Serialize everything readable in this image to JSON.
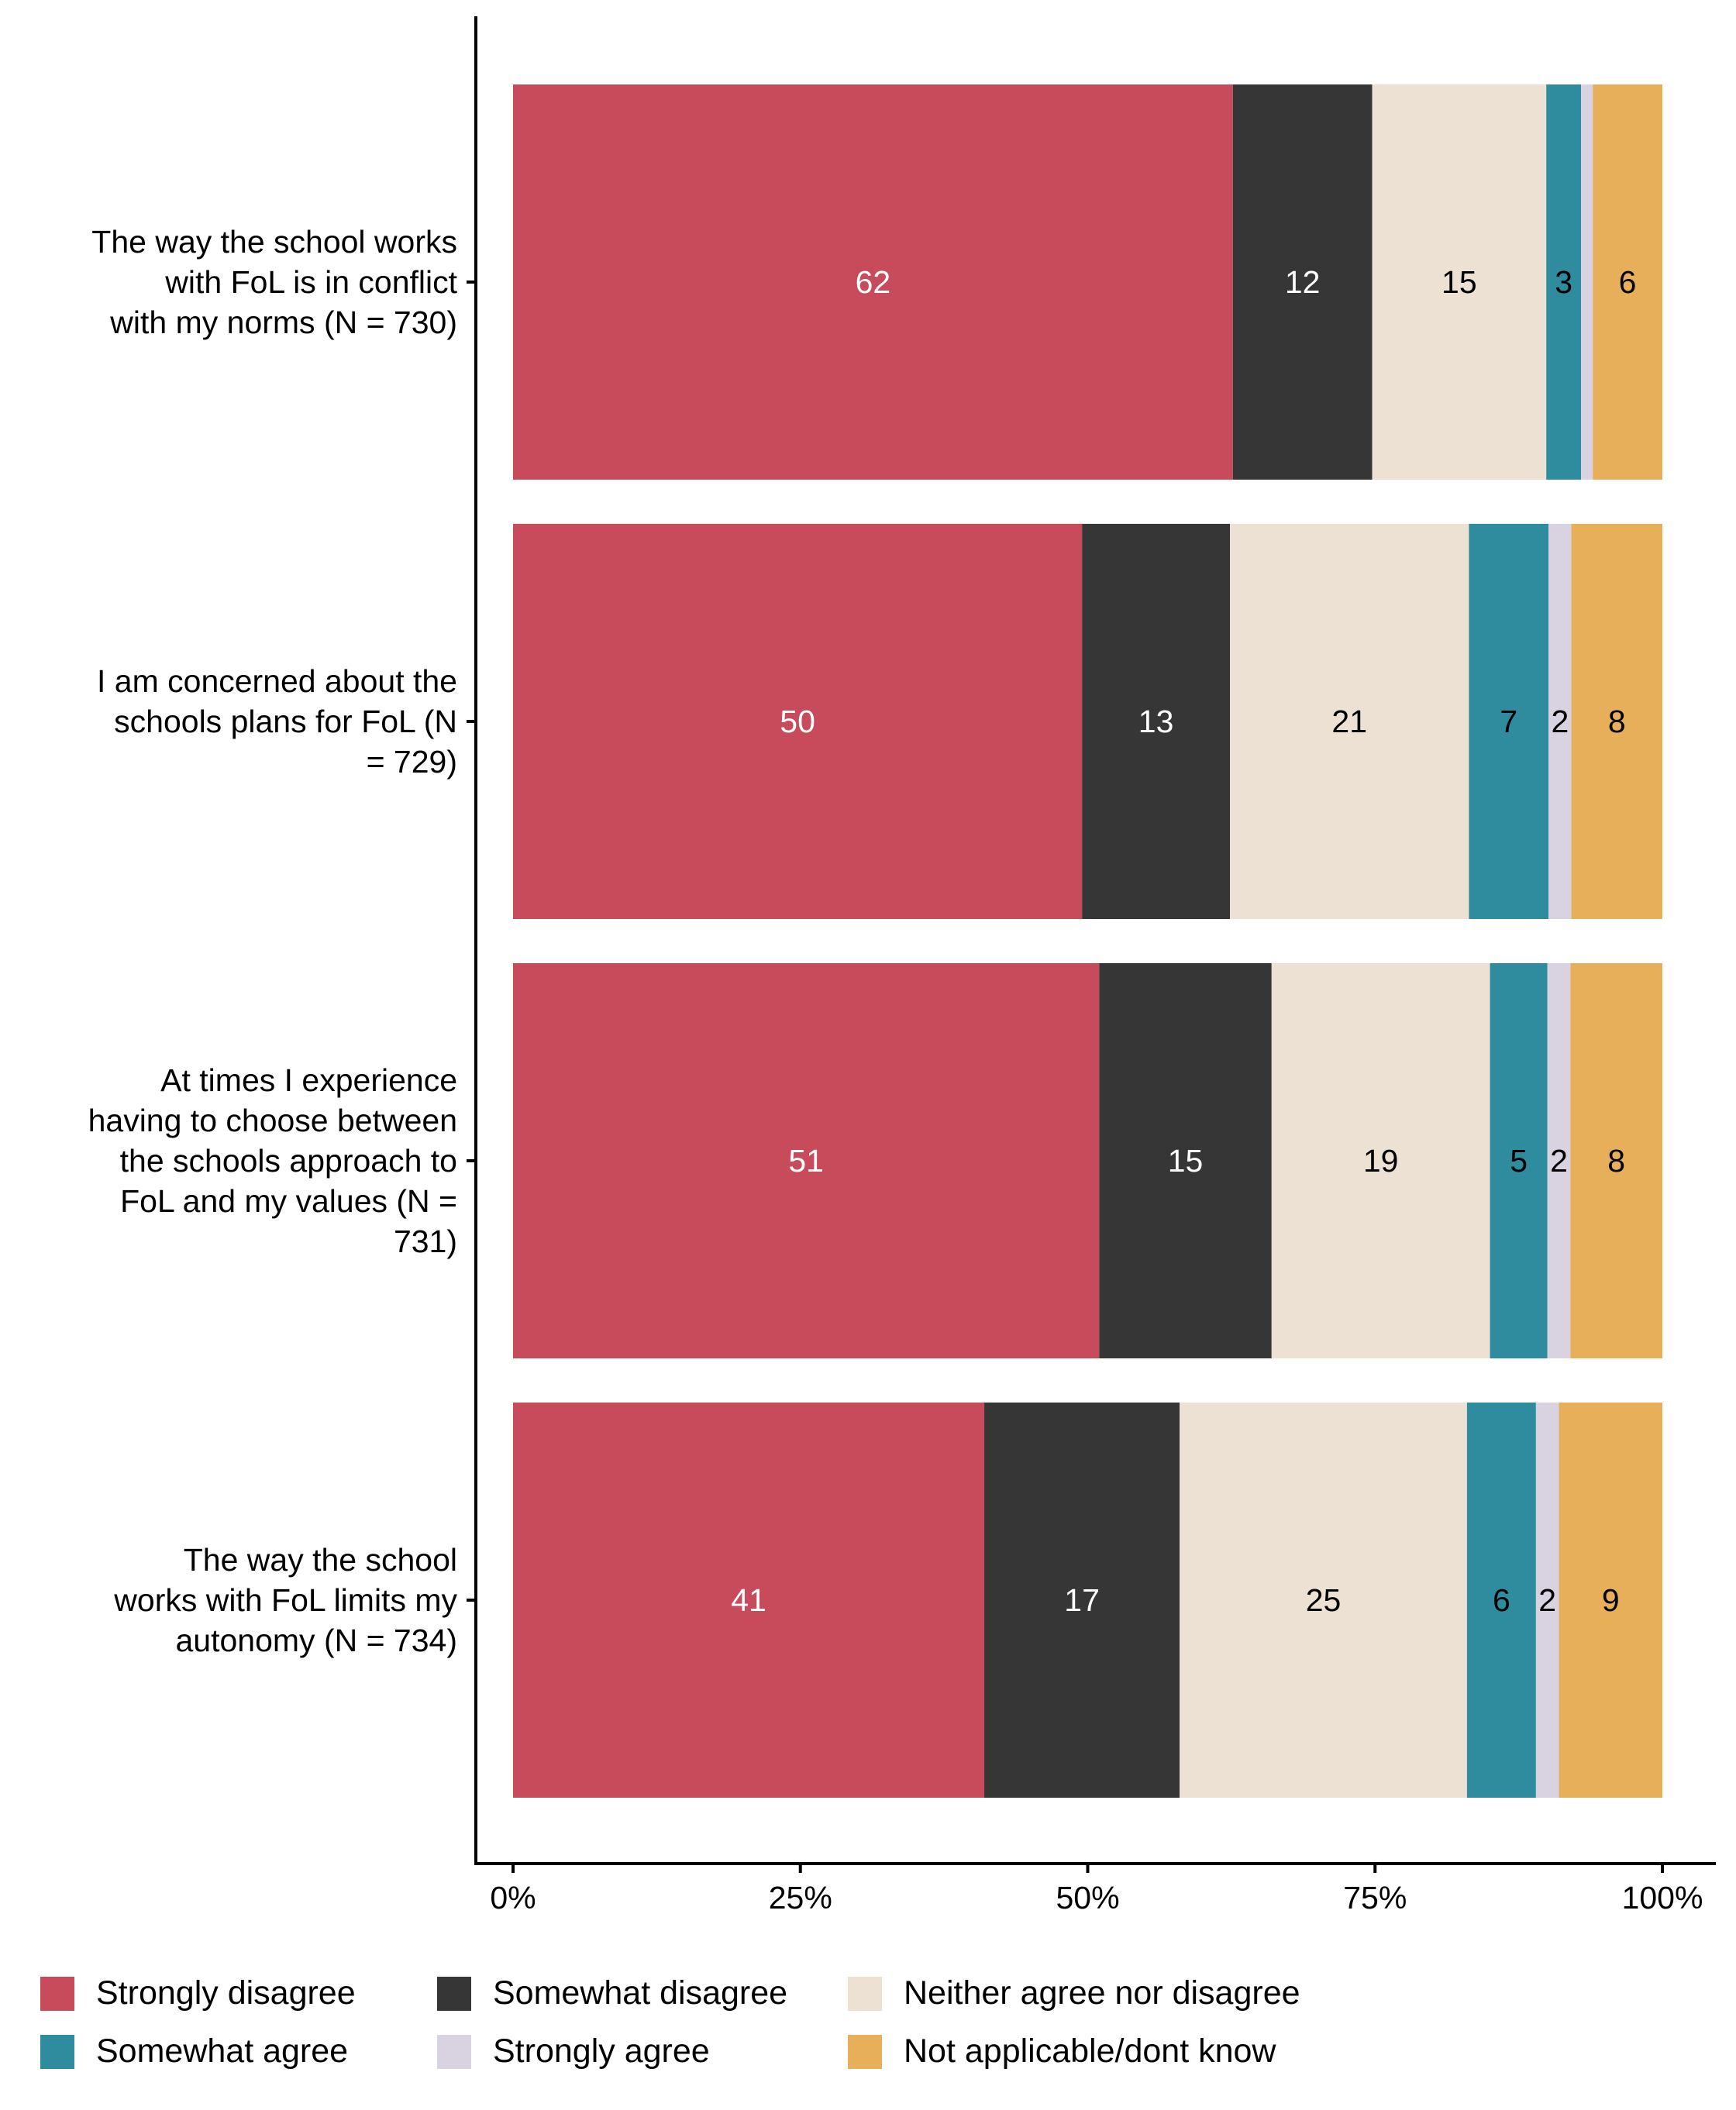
{
  "chart_data": {
    "type": "bar",
    "orientation": "horizontal",
    "stacked": true,
    "percent": true,
    "title": "",
    "xlabel": "",
    "ylabel": "",
    "xlim": [
      0,
      100
    ],
    "x_ticks": [
      "0%",
      "25%",
      "50%",
      "75%",
      "100%"
    ],
    "x_tick_values": [
      0,
      25,
      50,
      75,
      100
    ],
    "grid": false,
    "legend_position": "bottom",
    "categories": [
      [
        "The way the school works",
        "with FoL is in conflict",
        "with my norms (N = 730)"
      ],
      [
        "I am concerned about the",
        "schools plans for FoL (N",
        "= 729)"
      ],
      [
        "At times I experience",
        "having to choose between",
        "the schools approach to",
        "FoL and my values (N =",
        "731)"
      ],
      [
        "The way the school",
        "works with FoL limits my",
        "autonomy (N = 734)"
      ]
    ],
    "series": [
      {
        "name": "Strongly disagree",
        "color": "#C74B5A",
        "label_color": "#FFFFFF",
        "values": [
          62,
          50,
          51,
          41
        ]
      },
      {
        "name": "Somewhat disagree",
        "color": "#363636",
        "label_color": "#FFFFFF",
        "values": [
          12,
          13,
          15,
          17
        ]
      },
      {
        "name": "Neither agree nor disagree",
        "color": "#ECE1D2",
        "label_color": "#000000",
        "values": [
          15,
          21,
          19,
          25
        ]
      },
      {
        "name": "Somewhat agree",
        "color": "#2E8C9E",
        "label_color": "#000000",
        "values": [
          3,
          7,
          5,
          6
        ]
      },
      {
        "name": "Strongly agree",
        "color": "#D9D2E0",
        "label_color": "#000000",
        "values": [
          1,
          2,
          2,
          2
        ]
      },
      {
        "name": "Not applicable/dont know",
        "color": "#E8AF5B",
        "label_color": "#000000",
        "values": [
          6,
          8,
          8,
          9
        ]
      }
    ],
    "hidden_label_below": 2
  },
  "legend": {
    "rows": [
      [
        0,
        1,
        2
      ],
      [
        3,
        4,
        5
      ]
    ]
  }
}
